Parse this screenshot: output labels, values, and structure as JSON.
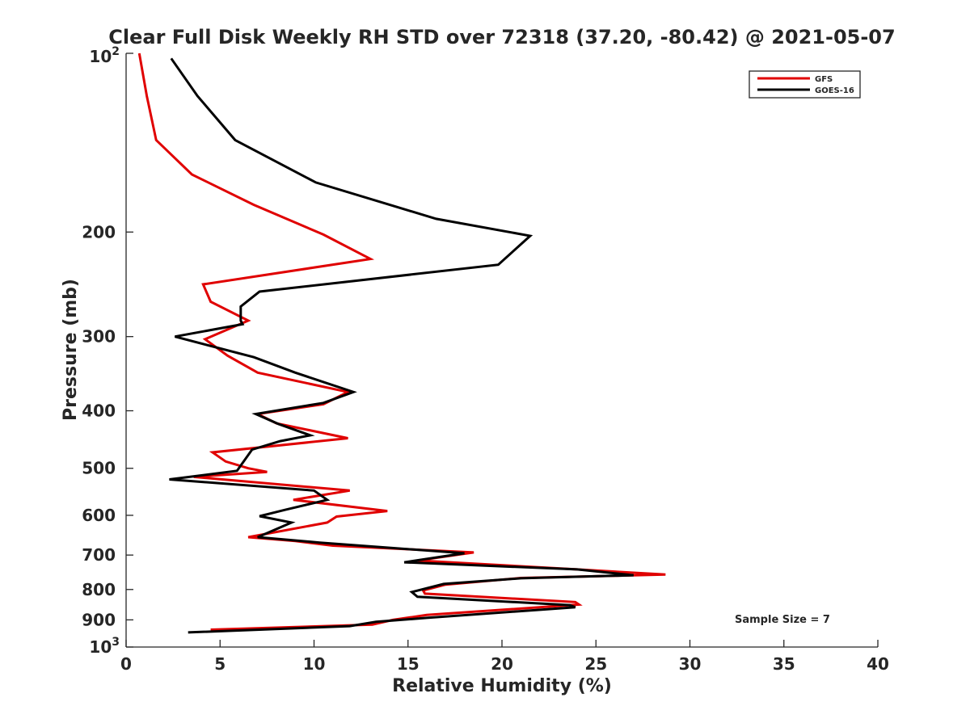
{
  "chart_data": {
    "type": "line",
    "title": "Clear Full Disk Weekly RH STD over 72318 (37.20, -80.42) @ 2021-05-07",
    "xlabel": "Relative Humidity (%)",
    "ylabel": "Pressure (mb)",
    "xlim": [
      0,
      40
    ],
    "ylim": [
      100,
      1000
    ],
    "yscale": "log",
    "yaxis_reversed": true,
    "grid": false,
    "legend_position": "top-right",
    "annotation": "Sample Size = 7",
    "x_ticks": [
      "0",
      "5",
      "10",
      "15",
      "20",
      "25",
      "30",
      "35",
      "40"
    ],
    "y_ticks": [
      {
        "value": 100,
        "base": "10",
        "exp": "2"
      },
      {
        "value": 200,
        "label": "200"
      },
      {
        "value": 300,
        "label": "300"
      },
      {
        "value": 400,
        "label": "400"
      },
      {
        "value": 500,
        "label": "500"
      },
      {
        "value": 600,
        "label": "600"
      },
      {
        "value": 700,
        "label": "700"
      },
      {
        "value": 800,
        "label": "800"
      },
      {
        "value": 900,
        "label": "900"
      },
      {
        "value": 1000,
        "base": "10",
        "exp": "3"
      }
    ],
    "series": [
      {
        "name": "GFS",
        "color": "#e00000",
        "x": [
          0.7,
          1.1,
          1.6,
          3.5,
          6.8,
          10.5,
          13.0,
          4.1,
          4.5,
          6.5,
          4.2,
          5.4,
          7.0,
          11.8,
          10.5,
          7.0,
          8.0,
          11.8,
          4.6,
          5.3,
          6.5,
          7.5,
          3.6,
          11.9,
          8.9,
          13.9,
          11.2,
          10.7,
          6.5,
          9.0,
          11.0,
          18.5,
          15.5,
          24.0,
          28.7,
          21.0,
          17.0,
          15.8,
          15.9,
          23.9,
          24.1,
          16.0,
          14.2,
          13.1,
          4.5
        ],
        "y": [
          100,
          118,
          140,
          160,
          180,
          202,
          222,
          245,
          262,
          282,
          303,
          323,
          345,
          372,
          390,
          405,
          420,
          445,
          470,
          487,
          500,
          507,
          517,
          545,
          565,
          590,
          603,
          617,
          653,
          663,
          675,
          693,
          715,
          740,
          755,
          765,
          785,
          803,
          813,
          840,
          848,
          883,
          900,
          917,
          935
        ]
      },
      {
        "name": "GOES-16",
        "color": "#000000",
        "x": [
          2.4,
          3.8,
          5.8,
          10.1,
          16.5,
          21.5,
          19.8,
          7.1,
          6.1,
          6.1,
          6.2,
          2.6,
          6.8,
          9.0,
          12.1,
          10.5,
          6.9,
          8.1,
          9.8,
          8.2,
          6.7,
          5.9,
          2.3,
          10.0,
          10.7,
          8.5,
          7.1,
          8.8,
          7.0,
          10.3,
          18.0,
          14.8,
          24.0,
          27.0,
          21.0,
          16.9,
          15.2,
          15.5,
          23.6,
          23.9,
          16.0,
          13.3,
          11.9,
          3.3
        ],
        "y": [
          102,
          118,
          140,
          165,
          190,
          203,
          227,
          252,
          267,
          282,
          286,
          300,
          325,
          345,
          372,
          388,
          405,
          421,
          440,
          450,
          465,
          505,
          522,
          545,
          565,
          587,
          602,
          617,
          653,
          667,
          695,
          720,
          740,
          757,
          766,
          783,
          808,
          823,
          850,
          857,
          893,
          907,
          922,
          945
        ]
      }
    ]
  }
}
